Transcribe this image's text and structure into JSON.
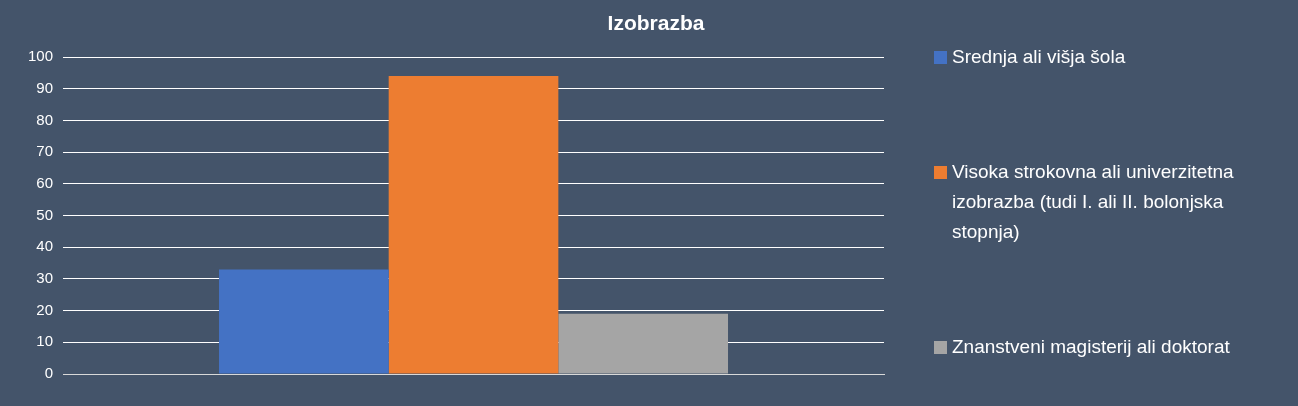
{
  "chart_data": {
    "type": "bar",
    "title": "Izobrazba",
    "categories": [
      null
    ],
    "series": [
      {
        "name": "Srednja ali višja šola",
        "color": "#4472c4",
        "values": [
          33
        ]
      },
      {
        "name": "Visoka strokovna ali univerzitetna izobrazba (tudi I. ali II. bolonjska stopnja)",
        "color": "#ed7d31",
        "values": [
          94
        ]
      },
      {
        "name": "Znanstveni magisterij ali doktorat",
        "color": "#a5a5a5",
        "values": [
          19
        ]
      }
    ],
    "ylim": [
      0,
      100
    ],
    "yticks": [
      0,
      10,
      20,
      30,
      40,
      50,
      60,
      70,
      80,
      90,
      100
    ],
    "grid": "y",
    "legend": "right"
  }
}
